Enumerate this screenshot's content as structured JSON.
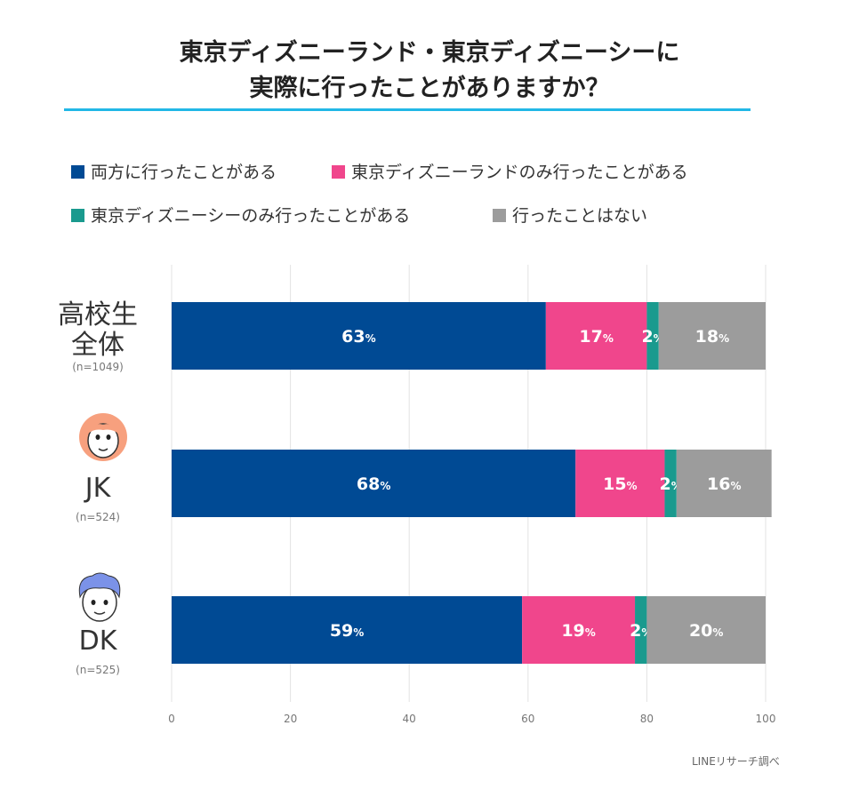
{
  "title_line1": "東京ディズニーランド・東京ディズニーシーに",
  "title_line2": "実際に行ったことがありますか？",
  "source": "LINEリサーチ調べ",
  "legend": [
    {
      "label": "両方に行ったことがある",
      "color": "#004a94"
    },
    {
      "label": "東京ディズニーランドのみ行ったことがある",
      "color": "#f0468c"
    },
    {
      "label": "東京ディズニーシーのみ行ったことがある",
      "color": "#1a9a8e"
    },
    {
      "label": "行ったことはない",
      "color": "#9c9c9c"
    }
  ],
  "rows": [
    {
      "label_line1": "高校生",
      "label_line2": "全体",
      "n": "(n=1049)"
    },
    {
      "label": "JK",
      "n": "(n=524)",
      "icon": "girl-face-icon"
    },
    {
      "label": "DK",
      "n": "(n=525)",
      "icon": "boy-face-icon"
    }
  ],
  "chart_data": {
    "type": "bar",
    "orientation": "horizontal",
    "stacked": true,
    "categories": [
      "高校生全体",
      "JK",
      "DK"
    ],
    "series": [
      {
        "name": "両方に行ったことがある",
        "color": "#004a94",
        "values": [
          63,
          68,
          59
        ],
        "labels": [
          "63",
          "68",
          "59"
        ]
      },
      {
        "name": "東京ディズニーランドのみ行ったことがある",
        "color": "#f0468c",
        "values": [
          17,
          15,
          19
        ],
        "labels": [
          "17",
          "15",
          "19"
        ]
      },
      {
        "name": "東京ディズニーシーのみ行ったことがある",
        "color": "#1a9a8e",
        "values": [
          2,
          2,
          2
        ],
        "labels": [
          "2",
          "2",
          "2"
        ]
      },
      {
        "name": "行ったことはない",
        "color": "#9c9c9c",
        "values": [
          18,
          16,
          20
        ],
        "labels": [
          "18",
          "16",
          "20"
        ]
      }
    ],
    "value_suffix": "%",
    "xlim": [
      0,
      100
    ],
    "xticks": [
      0,
      20,
      40,
      60,
      80,
      100
    ],
    "grid": true,
    "legend_position": "top"
  }
}
